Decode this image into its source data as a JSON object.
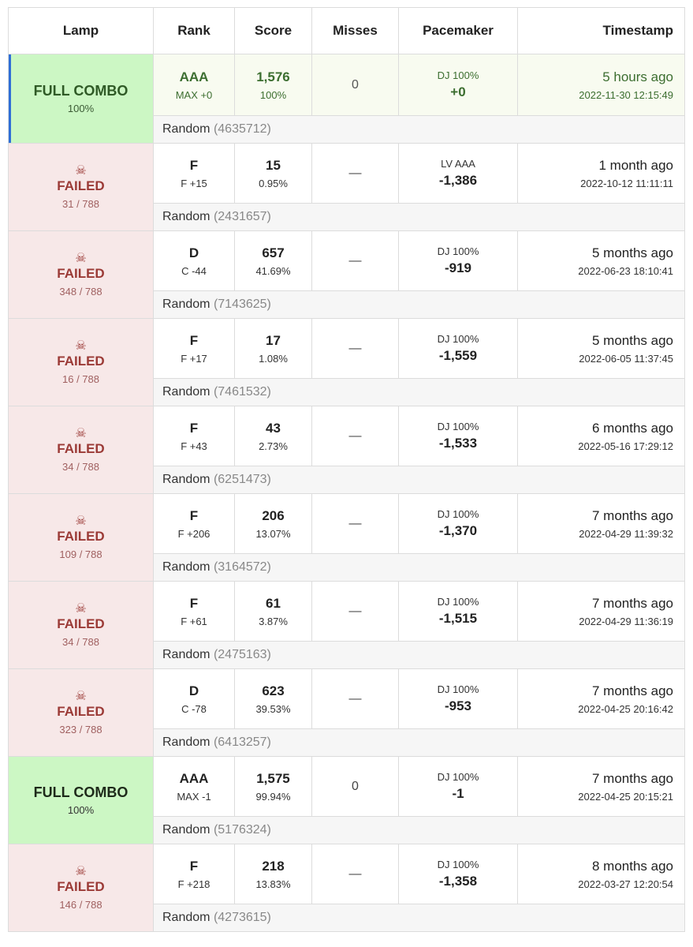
{
  "header": {
    "lamp": "Lamp",
    "rank": "Rank",
    "score": "Score",
    "misses": "Misses",
    "pacemaker": "Pacemaker",
    "timestamp": "Timestamp"
  },
  "icons": {
    "failed": "skull-crossbones-icon"
  },
  "colors": {
    "full_combo_bg": "#ccf7c4",
    "failed_bg": "#f7e8e8",
    "failed_text": "#9b3a36",
    "highlight_accent": "#2f6fd6"
  },
  "rows": [
    {
      "lamp": "FULL COMBO",
      "lamp_sub": "100%",
      "rank": "AAA",
      "rank_sub": "MAX +0",
      "score": "1,576",
      "score_pct": "100%",
      "misses": "0",
      "pace_label": "DJ 100%",
      "pace_diff": "+0",
      "time_rel": "5 hours ago",
      "time_abs": "2022-11-30 12:15:49",
      "seed_label": "Random",
      "seed": "(4635712)"
    },
    {
      "lamp": "FAILED",
      "lamp_sub": "31 / 788",
      "rank": "F",
      "rank_sub": "F +15",
      "score": "15",
      "score_pct": "0.95%",
      "misses": "—",
      "pace_label": "LV AAA",
      "pace_diff": "-1,386",
      "time_rel": "1 month ago",
      "time_abs": "2022-10-12 11:11:11",
      "seed_label": "Random",
      "seed": "(2431657)"
    },
    {
      "lamp": "FAILED",
      "lamp_sub": "348 / 788",
      "rank": "D",
      "rank_sub": "C -44",
      "score": "657",
      "score_pct": "41.69%",
      "misses": "—",
      "pace_label": "DJ 100%",
      "pace_diff": "-919",
      "time_rel": "5 months ago",
      "time_abs": "2022-06-23 18:10:41",
      "seed_label": "Random",
      "seed": "(7143625)"
    },
    {
      "lamp": "FAILED",
      "lamp_sub": "16 / 788",
      "rank": "F",
      "rank_sub": "F +17",
      "score": "17",
      "score_pct": "1.08%",
      "misses": "—",
      "pace_label": "DJ 100%",
      "pace_diff": "-1,559",
      "time_rel": "5 months ago",
      "time_abs": "2022-06-05 11:37:45",
      "seed_label": "Random",
      "seed": "(7461532)"
    },
    {
      "lamp": "FAILED",
      "lamp_sub": "34 / 788",
      "rank": "F",
      "rank_sub": "F +43",
      "score": "43",
      "score_pct": "2.73%",
      "misses": "—",
      "pace_label": "DJ 100%",
      "pace_diff": "-1,533",
      "time_rel": "6 months ago",
      "time_abs": "2022-05-16 17:29:12",
      "seed_label": "Random",
      "seed": "(6251473)"
    },
    {
      "lamp": "FAILED",
      "lamp_sub": "109 / 788",
      "rank": "F",
      "rank_sub": "F +206",
      "score": "206",
      "score_pct": "13.07%",
      "misses": "—",
      "pace_label": "DJ 100%",
      "pace_diff": "-1,370",
      "time_rel": "7 months ago",
      "time_abs": "2022-04-29 11:39:32",
      "seed_label": "Random",
      "seed": "(3164572)"
    },
    {
      "lamp": "FAILED",
      "lamp_sub": "34 / 788",
      "rank": "F",
      "rank_sub": "F +61",
      "score": "61",
      "score_pct": "3.87%",
      "misses": "—",
      "pace_label": "DJ 100%",
      "pace_diff": "-1,515",
      "time_rel": "7 months ago",
      "time_abs": "2022-04-29 11:36:19",
      "seed_label": "Random",
      "seed": "(2475163)"
    },
    {
      "lamp": "FAILED",
      "lamp_sub": "323 / 788",
      "rank": "D",
      "rank_sub": "C -78",
      "score": "623",
      "score_pct": "39.53%",
      "misses": "—",
      "pace_label": "DJ 100%",
      "pace_diff": "-953",
      "time_rel": "7 months ago",
      "time_abs": "2022-04-25 20:16:42",
      "seed_label": "Random",
      "seed": "(6413257)"
    },
    {
      "lamp": "FULL COMBO",
      "lamp_sub": "100%",
      "rank": "AAA",
      "rank_sub": "MAX -1",
      "score": "1,575",
      "score_pct": "99.94%",
      "misses": "0",
      "pace_label": "DJ 100%",
      "pace_diff": "-1",
      "time_rel": "7 months ago",
      "time_abs": "2022-04-25 20:15:21",
      "seed_label": "Random",
      "seed": "(5176324)"
    },
    {
      "lamp": "FAILED",
      "lamp_sub": "146 / 788",
      "rank": "F",
      "rank_sub": "F +218",
      "score": "218",
      "score_pct": "13.83%",
      "misses": "—",
      "pace_label": "DJ 100%",
      "pace_diff": "-1,358",
      "time_rel": "8 months ago",
      "time_abs": "2022-03-27 12:20:54",
      "seed_label": "Random",
      "seed": "(4273615)"
    }
  ]
}
